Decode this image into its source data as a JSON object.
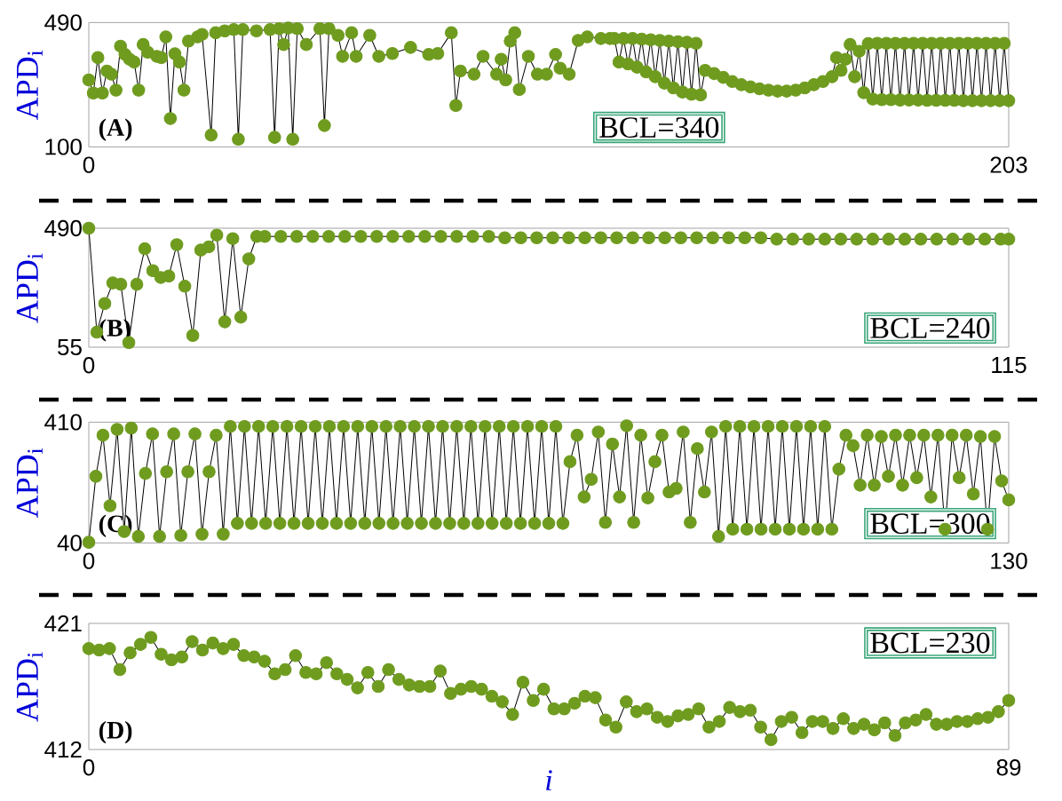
{
  "chart_data": [
    {
      "type": "line",
      "ylabel": "APD$_{i}$",
      "annotations": [
        "(A)",
        "BCL=340"
      ],
      "color": "#6f9c1f",
      "marker": "circle",
      "xlim": [
        0,
        203
      ],
      "ylim": [
        100,
        490
      ],
      "xticks": [
        0,
        203
      ],
      "yticks": [
        100,
        490
      ],
      "x": [
        0,
        1,
        2,
        3,
        4,
        5,
        6,
        7,
        8,
        9,
        10,
        11,
        12,
        13,
        15,
        16,
        17,
        18,
        19,
        20,
        21,
        22,
        24,
        25,
        27,
        28,
        30,
        32,
        33,
        34,
        37,
        40,
        41,
        42,
        43,
        44,
        45,
        46,
        48,
        51,
        52,
        53,
        55,
        56,
        58,
        59,
        62,
        64,
        67,
        71,
        75,
        77,
        80,
        81,
        82,
        85,
        87,
        90,
        91,
        92,
        93,
        94,
        95,
        97,
        99,
        101,
        103,
        104,
        106,
        108,
        110,
        113,
        115,
        116,
        117,
        118,
        119,
        120,
        121,
        122,
        123,
        124,
        125,
        126,
        127,
        128,
        129,
        130,
        131,
        132,
        133,
        134,
        135,
        136,
        138,
        140,
        142,
        144,
        146,
        148,
        150,
        152,
        154,
        156,
        158,
        160,
        162,
        164,
        165,
        166,
        167,
        168,
        169,
        170,
        171,
        172,
        173,
        174,
        175,
        176,
        177,
        178,
        179,
        180,
        181,
        182,
        183,
        184,
        185,
        186,
        187,
        188,
        189,
        190,
        191,
        192,
        193,
        194,
        195,
        196,
        197,
        198,
        199,
        200,
        201,
        202,
        203
      ],
      "values": [
        310,
        269,
        380,
        269,
        338,
        328,
        278,
        416,
        390,
        375,
        366,
        278,
        421,
        397,
        384,
        380,
        445,
        189,
        392,
        366,
        278,
        432,
        445,
        453,
        137,
        458,
        464,
        468,
        124,
        468,
        464,
        468,
        130,
        471,
        421,
        473,
        124,
        471,
        421,
        471,
        167,
        471,
        450,
        384,
        458,
        384,
        450,
        384,
        393,
        412,
        390,
        393,
        458,
        230,
        338,
        328,
        384,
        328,
        375,
        310,
        432,
        458,
        280,
        384,
        328,
        328,
        390,
        347,
        328,
        434,
        445,
        440,
        440,
        440,
        366,
        440,
        360,
        440,
        350,
        438,
        335,
        436,
        320,
        434,
        300,
        432,
        285,
        430,
        272,
        428,
        265,
        425,
        263,
        340,
        330,
        318,
        305,
        295,
        288,
        282,
        278,
        275,
        275,
        278,
        285,
        295,
        305,
        320,
        380,
        340,
        375,
        421,
        320,
        400,
        270,
        424,
        250,
        425,
        248,
        425,
        248,
        425,
        247,
        425,
        247,
        425,
        247,
        425,
        246,
        425,
        246,
        425,
        246,
        425,
        246,
        425,
        245,
        425,
        245,
        425,
        245,
        425,
        245,
        425,
        245,
        425,
        245
      ]
    },
    {
      "type": "line",
      "ylabel": "APD$_{i}$",
      "annotations": [
        "(B)",
        "BCL=240"
      ],
      "color": "#6f9c1f",
      "marker": "circle",
      "xlim": [
        0,
        115
      ],
      "ylim": [
        55,
        490
      ],
      "xticks": [
        0,
        115
      ],
      "yticks": [
        55,
        490
      ],
      "x": [
        0,
        1,
        2,
        3,
        4,
        5,
        6,
        7,
        8,
        9,
        10,
        11,
        12,
        13,
        14,
        15,
        16,
        17,
        18,
        19,
        20,
        21,
        22,
        24,
        26,
        28,
        30,
        32,
        34,
        36,
        38,
        40,
        42,
        44,
        46,
        48,
        50,
        52,
        54,
        56,
        58,
        60,
        62,
        64,
        66,
        68,
        70,
        72,
        74,
        76,
        78,
        80,
        82,
        84,
        86,
        88,
        90,
        92,
        94,
        96,
        98,
        100,
        102,
        104,
        106,
        108,
        110,
        112,
        114,
        115
      ],
      "values": [
        490,
        110,
        215,
        290,
        285,
        72,
        285,
        415,
        335,
        310,
        315,
        430,
        278,
        98,
        410,
        422,
        465,
        148,
        452,
        165,
        378,
        460,
        460,
        460,
        460,
        460,
        460,
        460,
        460,
        460,
        460,
        460,
        460,
        460,
        460,
        460,
        460,
        455,
        455,
        455,
        455,
        455,
        455,
        455,
        455,
        455,
        455,
        455,
        455,
        455,
        455,
        455,
        455,
        455,
        450,
        450,
        450,
        450,
        450,
        450,
        450,
        450,
        450,
        450,
        450,
        450,
        450,
        450,
        450,
        450
      ]
    },
    {
      "type": "line",
      "ylabel": "APD$_{i}$",
      "annotations": [
        "(C)",
        "BCL=300"
      ],
      "color": "#6f9c1f",
      "marker": "circle",
      "xlim": [
        0,
        130
      ],
      "ylim": [
        40,
        410
      ],
      "xticks": [
        0,
        130
      ],
      "yticks": [
        40,
        410
      ],
      "x": [
        0,
        1,
        2,
        3,
        4,
        5,
        6,
        7,
        8,
        9,
        10,
        11,
        12,
        13,
        14,
        15,
        16,
        17,
        18,
        19,
        20,
        21,
        22,
        23,
        24,
        25,
        26,
        27,
        28,
        29,
        30,
        31,
        32,
        33,
        34,
        35,
        36,
        37,
        38,
        39,
        40,
        41,
        42,
        43,
        44,
        45,
        46,
        47,
        48,
        49,
        50,
        51,
        52,
        53,
        54,
        55,
        56,
        57,
        58,
        59,
        60,
        61,
        62,
        63,
        64,
        65,
        66,
        67,
        68,
        69,
        70,
        71,
        72,
        73,
        74,
        75,
        76,
        77,
        78,
        79,
        80,
        81,
        82,
        83,
        84,
        85,
        86,
        87,
        88,
        89,
        90,
        91,
        92,
        93,
        94,
        95,
        96,
        97,
        98,
        99,
        100,
        101,
        102,
        103,
        104,
        105,
        106,
        107,
        108,
        109,
        110,
        111,
        112,
        113,
        114,
        115,
        116,
        117,
        118,
        119,
        120,
        121,
        122,
        123,
        124,
        125,
        126,
        127,
        128,
        129,
        130
      ],
      "values": [
        42,
        244,
        370,
        154,
        388,
        75,
        392,
        60,
        253,
        374,
        60,
        258,
        374,
        63,
        258,
        374,
        67,
        258,
        370,
        67,
        397,
        100,
        397,
        100,
        397,
        100,
        397,
        100,
        397,
        100,
        397,
        100,
        397,
        100,
        397,
        100,
        397,
        100,
        397,
        100,
        397,
        100,
        397,
        100,
        397,
        100,
        397,
        100,
        397,
        100,
        397,
        100,
        397,
        100,
        397,
        100,
        397,
        100,
        397,
        100,
        397,
        100,
        397,
        100,
        397,
        100,
        397,
        100,
        289,
        370,
        181,
        235,
        380,
        103,
        343,
        181,
        399,
        103,
        370,
        178,
        289,
        370,
        196,
        207,
        380,
        103,
        329,
        196,
        380,
        60,
        397,
        82,
        397,
        82,
        397,
        82,
        397,
        82,
        397,
        82,
        397,
        82,
        397,
        82,
        397,
        82,
        266,
        370,
        338,
        217,
        370,
        217,
        366,
        244,
        370,
        217,
        370,
        240,
        370,
        181,
        370,
        82,
        370,
        240,
        370,
        190,
        366,
        82,
        366,
        230,
        172
      ]
    },
    {
      "type": "line",
      "ylabel": "APD$_{i}$",
      "xlabel": "i",
      "annotations": [
        "(D)",
        "BCL=230"
      ],
      "color": "#6f9c1f",
      "marker": "circle",
      "xlim": [
        0,
        89
      ],
      "ylim": [
        412,
        421
      ],
      "xticks": [
        0,
        89
      ],
      "yticks": [
        412,
        421
      ],
      "x": [
        0,
        1,
        2,
        3,
        4,
        5,
        6,
        7,
        8,
        9,
        10,
        11,
        12,
        13,
        14,
        15,
        16,
        17,
        18,
        19,
        20,
        21,
        22,
        23,
        24,
        25,
        26,
        27,
        28,
        29,
        30,
        31,
        32,
        33,
        34,
        35,
        36,
        37,
        38,
        39,
        40,
        41,
        42,
        43,
        44,
        45,
        46,
        47,
        48,
        49,
        50,
        51,
        52,
        53,
        54,
        55,
        56,
        57,
        58,
        59,
        60,
        61,
        62,
        63,
        64,
        65,
        66,
        67,
        68,
        69,
        70,
        71,
        72,
        73,
        74,
        75,
        76,
        77,
        78,
        79,
        80,
        81,
        82,
        83,
        84,
        85,
        86,
        87,
        88,
        89
      ],
      "values": [
        419.2,
        419.1,
        419.2,
        417.7,
        418.9,
        419.5,
        420.0,
        418.8,
        418.4,
        418.6,
        419.7,
        419.1,
        419.6,
        419.2,
        419.5,
        418.7,
        418.6,
        418.3,
        417.4,
        417.7,
        418.7,
        417.5,
        417.4,
        418.2,
        417.4,
        417.0,
        416.4,
        417.5,
        416.5,
        417.7,
        417.0,
        416.6,
        416.5,
        416.5,
        417.6,
        416.0,
        416.3,
        416.5,
        416.3,
        415.8,
        415.4,
        414.5,
        416.8,
        415.5,
        416.3,
        414.9,
        414.9,
        415.3,
        415.8,
        415.7,
        414.1,
        413.6,
        415.4,
        414.7,
        414.9,
        414.3,
        414.0,
        414.4,
        414.5,
        414.9,
        413.6,
        414.0,
        415.0,
        414.7,
        414.8,
        413.6,
        412.7,
        414.0,
        414.3,
        413.2,
        414.0,
        414.0,
        413.5,
        414.2,
        413.5,
        413.8,
        413.4,
        413.9,
        413.0,
        413.9,
        414.1,
        414.5,
        413.8,
        413.8,
        414.0,
        414.0,
        414.2,
        414.3,
        414.7,
        415.5
      ]
    }
  ]
}
